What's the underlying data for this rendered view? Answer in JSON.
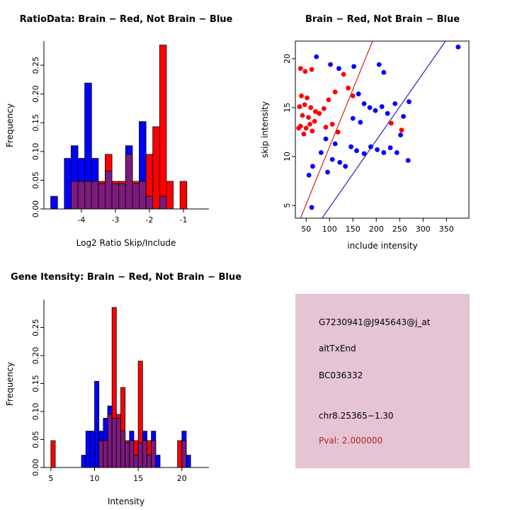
{
  "colors": {
    "red": "#ff0000",
    "blue": "#0000ff",
    "overlap": "#7d1a7d",
    "red_line": "#cc2222",
    "blue_line": "#2222cc",
    "info_box_bg": "#e5c4d4",
    "pval_text": "#b22222",
    "axis": "#000000"
  },
  "chart_data": [
    {
      "id": "ratio-histogram",
      "type": "bar",
      "title": "RatioData: Brain − Red, Not Brain − Blue",
      "xlabel": "Log2 Ratio Skip/Include",
      "ylabel": "Frequency",
      "xlim": [
        -5.1,
        -0.25
      ],
      "ylim": [
        0,
        0.292
      ],
      "xticks": [
        -4,
        -3,
        -2,
        -1
      ],
      "xtick_labels": [
        "-4",
        "-3",
        "-2",
        "-1"
      ],
      "yticks": [
        0,
        0.05,
        0.1,
        0.15,
        0.2,
        0.25
      ],
      "ytick_labels": [
        "0.00",
        "0.05",
        "0.10",
        "0.15",
        "0.20",
        "0.25"
      ],
      "bin_width": 0.2,
      "legend": {
        "red": "Brain",
        "blue": "Not Brain"
      },
      "bins": [
        {
          "x": -4.9,
          "blue": 0.022,
          "red": 0
        },
        {
          "x": -4.5,
          "blue": 0.088,
          "red": 0
        },
        {
          "x": -4.3,
          "blue": 0.11,
          "red": 0.048
        },
        {
          "x": -4.1,
          "blue": 0.088,
          "red": 0.048
        },
        {
          "x": -3.9,
          "blue": 0.219,
          "red": 0.048
        },
        {
          "x": -3.7,
          "blue": 0.088,
          "red": 0.048
        },
        {
          "x": -3.5,
          "blue": 0.044,
          "red": 0.048
        },
        {
          "x": -3.3,
          "blue": 0.066,
          "red": 0.095
        },
        {
          "x": -3.1,
          "blue": 0.044,
          "red": 0.048
        },
        {
          "x": -2.9,
          "blue": 0.044,
          "red": 0.048
        },
        {
          "x": -2.7,
          "blue": 0.11,
          "red": 0.095
        },
        {
          "x": -2.5,
          "blue": 0.044,
          "red": 0.048
        },
        {
          "x": -2.3,
          "blue": 0.152,
          "red": 0.048
        },
        {
          "x": -2.1,
          "blue": 0.022,
          "red": 0.095
        },
        {
          "x": -1.9,
          "blue": 0,
          "red": 0.143
        },
        {
          "x": -1.7,
          "blue": 0.022,
          "red": 0.285
        },
        {
          "x": -1.5,
          "blue": 0,
          "red": 0.048
        },
        {
          "x": -1.1,
          "blue": 0,
          "red": 0.048
        }
      ]
    },
    {
      "id": "intensity-scatter",
      "type": "scatter",
      "title": "Brain − Red, Not Brain − Blue",
      "xlabel": "include intensity",
      "ylabel": "skip intensity",
      "xlim": [
        27,
        398
      ],
      "ylim": [
        3.7,
        21.8
      ],
      "xticks": [
        50,
        100,
        150,
        200,
        250,
        300,
        350
      ],
      "xtick_labels": [
        "50",
        "100",
        "150",
        "200",
        "250",
        "300",
        "350"
      ],
      "yticks": [
        5,
        10,
        15,
        20
      ],
      "ytick_labels": [
        "5",
        "10",
        "15",
        "20"
      ],
      "legend": {
        "red": "Brain",
        "blue": "Not Brain"
      },
      "points_red": [
        [
          38,
          19.0
        ],
        [
          48,
          18.7
        ],
        [
          62,
          18.9
        ],
        [
          40,
          16.2
        ],
        [
          52,
          16.0
        ],
        [
          36,
          15.1
        ],
        [
          47,
          15.3
        ],
        [
          60,
          15.0
        ],
        [
          70,
          14.6
        ],
        [
          42,
          14.2
        ],
        [
          55,
          14.0
        ],
        [
          78,
          14.4
        ],
        [
          38,
          13.1
        ],
        [
          50,
          12.9
        ],
        [
          63,
          12.6
        ],
        [
          45,
          12.3
        ],
        [
          58,
          13.3
        ],
        [
          92,
          13.0
        ],
        [
          106,
          13.3
        ],
        [
          118,
          12.5
        ],
        [
          130,
          18.4
        ],
        [
          140,
          17.0
        ],
        [
          150,
          16.2
        ],
        [
          112,
          16.6
        ],
        [
          98,
          15.8
        ],
        [
          88,
          14.9
        ],
        [
          232,
          13.4
        ],
        [
          254,
          12.7
        ],
        [
          34,
          12.9
        ],
        [
          68,
          13.6
        ]
      ],
      "points_blue": [
        [
          72,
          20.2
        ],
        [
          102,
          19.4
        ],
        [
          120,
          19.0
        ],
        [
          152,
          19.2
        ],
        [
          206,
          19.4
        ],
        [
          216,
          18.6
        ],
        [
          375,
          21.2
        ],
        [
          162,
          16.4
        ],
        [
          174,
          15.4
        ],
        [
          186,
          15.0
        ],
        [
          198,
          14.7
        ],
        [
          212,
          15.1
        ],
        [
          224,
          14.4
        ],
        [
          240,
          15.4
        ],
        [
          258,
          14.1
        ],
        [
          270,
          15.6
        ],
        [
          150,
          13.9
        ],
        [
          166,
          13.5
        ],
        [
          146,
          11.0
        ],
        [
          158,
          10.6
        ],
        [
          174,
          10.3
        ],
        [
          188,
          11.0
        ],
        [
          202,
          10.7
        ],
        [
          216,
          10.4
        ],
        [
          230,
          10.9
        ],
        [
          244,
          10.4
        ],
        [
          122,
          9.4
        ],
        [
          134,
          9.0
        ],
        [
          96,
          8.4
        ],
        [
          106,
          9.7
        ],
        [
          82,
          10.4
        ],
        [
          64,
          9.0
        ],
        [
          56,
          8.1
        ],
        [
          62,
          4.8
        ],
        [
          268,
          9.6
        ],
        [
          92,
          11.8
        ],
        [
          112,
          11.3
        ],
        [
          252,
          12.2
        ]
      ],
      "lines": [
        {
          "color": "#cc2222",
          "x1": 38,
          "y1": 3.7,
          "x2": 192,
          "y2": 21.8
        },
        {
          "color": "#2222cc",
          "x1": 84,
          "y1": 3.7,
          "x2": 348,
          "y2": 21.8
        }
      ]
    },
    {
      "id": "gene-histogram",
      "type": "bar",
      "title": "Gene Itensity: Brain − Red, Not Brain − Blue",
      "xlabel": "Intensity",
      "ylabel": "Frequency",
      "xlim": [
        4.2,
        23.1
      ],
      "ylim": [
        0,
        0.3
      ],
      "xticks": [
        5,
        10,
        15,
        20
      ],
      "xtick_labels": [
        "5",
        "10",
        "15",
        "20"
      ],
      "yticks": [
        0,
        0.05,
        0.1,
        0.15,
        0.2,
        0.25
      ],
      "ytick_labels": [
        "0.00",
        "0.05",
        "0.10",
        "0.15",
        "0.20",
        "0.25"
      ],
      "bin_width": 0.5,
      "legend": {
        "red": "Brain",
        "blue": "Not Brain"
      },
      "bins": [
        {
          "x": 5.0,
          "blue": 0,
          "red": 0.048
        },
        {
          "x": 8.5,
          "blue": 0.022,
          "red": 0
        },
        {
          "x": 9.0,
          "blue": 0.065,
          "red": 0
        },
        {
          "x": 9.5,
          "blue": 0.065,
          "red": 0
        },
        {
          "x": 10.0,
          "blue": 0.154,
          "red": 0
        },
        {
          "x": 10.5,
          "blue": 0.065,
          "red": 0.048
        },
        {
          "x": 11.0,
          "blue": 0.088,
          "red": 0.048
        },
        {
          "x": 11.5,
          "blue": 0.11,
          "red": 0.095
        },
        {
          "x": 12.0,
          "blue": 0.088,
          "red": 0.286
        },
        {
          "x": 12.5,
          "blue": 0.088,
          "red": 0.095
        },
        {
          "x": 13.0,
          "blue": 0.065,
          "red": 0.143
        },
        {
          "x": 13.5,
          "blue": 0.044,
          "red": 0.048
        },
        {
          "x": 14.0,
          "blue": 0.065,
          "red": 0.048
        },
        {
          "x": 14.5,
          "blue": 0.022,
          "red": 0.048
        },
        {
          "x": 15.0,
          "blue": 0.044,
          "red": 0.19
        },
        {
          "x": 15.5,
          "blue": 0.065,
          "red": 0.048
        },
        {
          "x": 16.0,
          "blue": 0.022,
          "red": 0.048
        },
        {
          "x": 16.5,
          "blue": 0.065,
          "red": 0.048
        },
        {
          "x": 17.0,
          "blue": 0.022,
          "red": 0
        },
        {
          "x": 19.5,
          "blue": 0,
          "red": 0.048
        },
        {
          "x": 20.0,
          "blue": 0.065,
          "red": 0.048
        },
        {
          "x": 20.5,
          "blue": 0.022,
          "red": 0
        }
      ]
    }
  ],
  "info_panel": {
    "lines": [
      "G7230941@J945643@j_at",
      "altTxEnd",
      "BC036332",
      "chr8.25365−1.30"
    ],
    "pval_line": "Pval: 2.000000"
  }
}
